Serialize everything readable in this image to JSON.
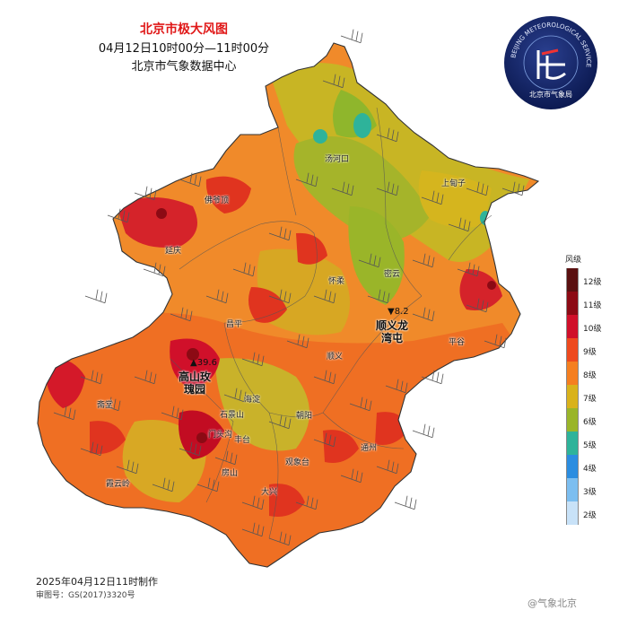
{
  "title": "北京市极大风图",
  "time_range": "04月12日10时00分—11时00分",
  "issuer": "北京市气象数据中心",
  "logo": {
    "text_ring": "BEIJING METEOROLOGICAL SERVICE",
    "text_cn": "北京市气象局",
    "icon": "meteorological-service-logo"
  },
  "legend": {
    "title": "风级",
    "items": [
      {
        "label": "12级",
        "color": "#5a1010"
      },
      {
        "label": "11级",
        "color": "#8c0a14"
      },
      {
        "label": "10级",
        "color": "#d0102a"
      },
      {
        "label": "9级",
        "color": "#ee4a1e"
      },
      {
        "label": "8级",
        "color": "#f57f20"
      },
      {
        "label": "7级",
        "color": "#d9b21b"
      },
      {
        "label": "6级",
        "color": "#9ab529"
      },
      {
        "label": "5级",
        "color": "#2eb39a"
      },
      {
        "label": "4级",
        "color": "#2b8de0"
      },
      {
        "label": "3级",
        "color": "#7cbef0"
      },
      {
        "label": "2级",
        "color": "#c8e2f8"
      }
    ]
  },
  "places": {
    "tanghekou": "汤河口",
    "shangdianzi": "上甸子",
    "fojiading": "佛爷顶",
    "yanqing": "延庆",
    "huairou": "怀柔",
    "miyun": "密云",
    "changping": "昌平",
    "pinggu": "平谷",
    "shunyi": "顺义",
    "zhaitang": "斋堂",
    "haidian": "海淀",
    "shijingshan": "石景山",
    "chaoyang": "朝阳",
    "mentougou": "门头沟",
    "fengtai": "丰台",
    "guanxiangtai": "观象台",
    "tongzhou": "通州",
    "xiayunling": "霞云岭",
    "fangshan": "房山",
    "daxing": "大兴"
  },
  "highlights": [
    {
      "name": "高山玫瑰园",
      "value": "39.6"
    },
    {
      "name": "顺义龙湾屯",
      "value": "8.2"
    }
  ],
  "footer": {
    "made": "2025年04月12日11时制作",
    "review": "审图号：GS(2017)3320号",
    "watermark": "@气象北京"
  }
}
